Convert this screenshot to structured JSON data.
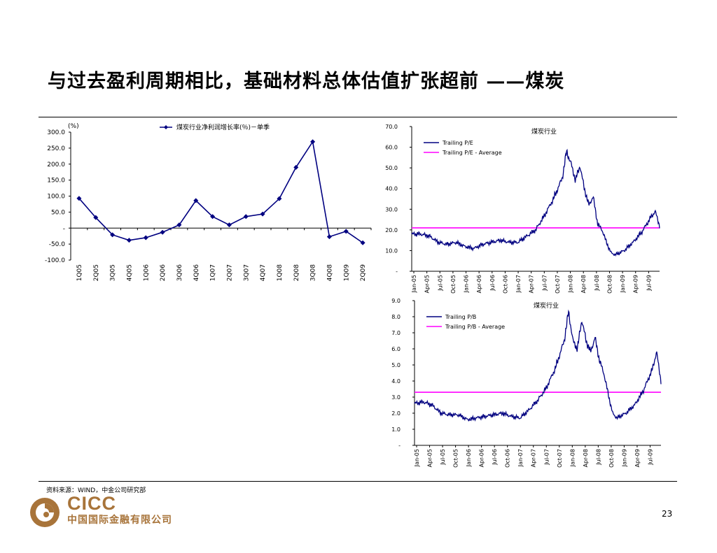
{
  "page": {
    "title": "与过去盈利周期相比，基础材料总体估值扩张超前 ——煤炭",
    "source": "资料来源：WIND，中金公司研究部",
    "logo_en": "CICC",
    "logo_cn": "中国国际金融有限公司",
    "page_number": "23",
    "colors": {
      "logo": "#a8743a",
      "series": "#000080",
      "average": "#ff00ff"
    }
  },
  "chart_data": [
    {
      "type": "line",
      "unit_label": "(%)",
      "legend": "煤炭行业净利润增长率(％)－单季",
      "categories": [
        "1Q05",
        "2Q05",
        "3Q05",
        "4Q05",
        "1Q06",
        "2Q06",
        "3Q06",
        "4Q06",
        "1Q07",
        "2Q07",
        "3Q07",
        "4Q07",
        "1Q08",
        "2Q08",
        "3Q08",
        "4Q08",
        "1Q09",
        "2Q09"
      ],
      "values": [
        93,
        33,
        -21,
        -38,
        -30,
        -13,
        10,
        86,
        36,
        10,
        36,
        44,
        92,
        190,
        270,
        -27,
        -10,
        -46
      ],
      "yticks": [
        "300.0",
        "250.0",
        "200.0",
        "150.0",
        "100.0",
        "50.0",
        "-",
        "-50.0",
        "-100.0"
      ],
      "ylim": [
        -100,
        300
      ],
      "marker": "diamond"
    },
    {
      "type": "line",
      "title": "煤炭行业",
      "legend": [
        "Trailing  P/E",
        "Trailing  P/E - Average"
      ],
      "yticks": [
        "70.0",
        "60.0",
        "50.0",
        "40.0",
        "30.0",
        "20.0",
        "10.0",
        "-"
      ],
      "ylim": [
        0,
        70
      ],
      "average": 21,
      "xticks": [
        "Jan-05",
        "Apr-05",
        "Jul-05",
        "Oct-05",
        "Jan-06",
        "Apr-06",
        "Jul-06",
        "Oct-06",
        "Jan-07",
        "Apr-07",
        "Jul-07",
        "Oct-07",
        "Jan-08",
        "Apr-08",
        "Jul-08",
        "Oct-08",
        "Jan-09",
        "Apr-09",
        "Jul-09"
      ],
      "x_range": [
        "2005-01",
        "2009-09"
      ],
      "series": [
        {
          "values": [
            [
              "2005-01",
              18
            ],
            [
              "2005-03",
              18
            ],
            [
              "2005-05",
              17
            ],
            [
              "2005-07",
              14
            ],
            [
              "2005-09",
              13
            ],
            [
              "2005-11",
              14
            ],
            [
              "2006-01",
              12
            ],
            [
              "2006-03",
              11
            ],
            [
              "2006-05",
              13
            ],
            [
              "2006-07",
              14
            ],
            [
              "2006-09",
              15
            ],
            [
              "2006-11",
              14
            ],
            [
              "2007-01",
              14
            ],
            [
              "2007-03",
              17
            ],
            [
              "2007-05",
              20
            ],
            [
              "2007-07",
              27
            ],
            [
              "2007-09",
              35
            ],
            [
              "2007-11",
              45
            ],
            [
              "2007-12",
              58
            ],
            [
              "2008-01",
              52
            ],
            [
              "2008-02",
              44
            ],
            [
              "2008-03",
              51
            ],
            [
              "2008-04",
              40
            ],
            [
              "2008-05",
              32
            ],
            [
              "2008-06",
              36
            ],
            [
              "2008-07",
              23
            ],
            [
              "2008-08",
              20
            ],
            [
              "2008-09",
              14
            ],
            [
              "2008-10",
              9
            ],
            [
              "2008-11",
              8
            ],
            [
              "2009-01",
              10
            ],
            [
              "2009-03",
              14
            ],
            [
              "2009-05",
              19
            ],
            [
              "2009-07",
              26
            ],
            [
              "2009-08",
              29
            ],
            [
              "2009-09",
              22
            ]
          ]
        }
      ]
    },
    {
      "type": "line",
      "title": "煤炭行业",
      "legend": [
        "Trailing P/B",
        "Trailing P/B - Average"
      ],
      "yticks": [
        "9.0",
        "8.0",
        "7.0",
        "6.0",
        "5.0",
        "4.0",
        "3.0",
        "2.0",
        "1.0",
        "-"
      ],
      "ylim": [
        0,
        9
      ],
      "average": 3.3,
      "xticks": [
        "Jan-05",
        "Apr-05",
        "Jul-05",
        "Oct-05",
        "Jan-06",
        "Apr-06",
        "Jul-06",
        "Oct-06",
        "Jan-07",
        "Apr-07",
        "Jul-07",
        "Oct-07",
        "Jan-08",
        "Apr-08",
        "Jul-08",
        "Oct-08",
        "Jan-09",
        "Apr-09",
        "Jul-09"
      ],
      "x_range": [
        "2005-01",
        "2009-09"
      ],
      "series": [
        {
          "values": [
            [
              "2005-01",
              2.6
            ],
            [
              "2005-03",
              2.7
            ],
            [
              "2005-05",
              2.5
            ],
            [
              "2005-07",
              2.0
            ],
            [
              "2005-09",
              1.9
            ],
            [
              "2005-11",
              1.9
            ],
            [
              "2006-01",
              1.6
            ],
            [
              "2006-03",
              1.7
            ],
            [
              "2006-05",
              1.8
            ],
            [
              "2006-07",
              1.9
            ],
            [
              "2006-09",
              2.0
            ],
            [
              "2006-11",
              1.8
            ],
            [
              "2007-01",
              1.7
            ],
            [
              "2007-03",
              2.2
            ],
            [
              "2007-05",
              2.8
            ],
            [
              "2007-07",
              3.6
            ],
            [
              "2007-09",
              4.8
            ],
            [
              "2007-11",
              6.5
            ],
            [
              "2007-12",
              8.3
            ],
            [
              "2008-01",
              6.5
            ],
            [
              "2008-02",
              6.0
            ],
            [
              "2008-03",
              7.8
            ],
            [
              "2008-04",
              6.5
            ],
            [
              "2008-05",
              5.8
            ],
            [
              "2008-06",
              6.7
            ],
            [
              "2008-07",
              5.3
            ],
            [
              "2008-08",
              4.5
            ],
            [
              "2008-09",
              3.2
            ],
            [
              "2008-10",
              2.0
            ],
            [
              "2008-11",
              1.7
            ],
            [
              "2009-01",
              2.0
            ],
            [
              "2009-03",
              2.5
            ],
            [
              "2009-05",
              3.4
            ],
            [
              "2009-07",
              4.7
            ],
            [
              "2009-08",
              5.8
            ],
            [
              "2009-09",
              4.0
            ]
          ]
        }
      ]
    }
  ]
}
